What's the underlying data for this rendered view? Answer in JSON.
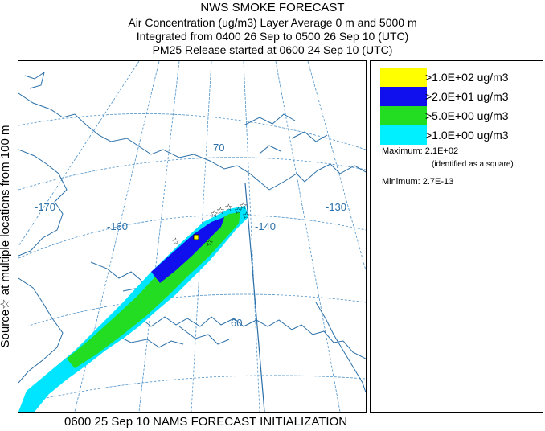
{
  "header": {
    "title": "NWS SMOKE FORECAST",
    "line2": "Air Concentration (ug/m3) Layer Average    0 m and  5000 m",
    "line3": "Integrated from 0400 26 Sep to 0500 26 Sep 10 (UTC)",
    "line4": "PM25 Release started at 0600 24 Sep 10 (UTC)"
  },
  "side_label": "Source☆    at multiple locations    from    100 m",
  "footer": "0600 25 Sep 10 NAMS FORECAST INITIALIZATION",
  "map": {
    "graticule_labels": {
      "lat70": "70",
      "lat60": "60",
      "lon170": "-170",
      "lon160": "-160",
      "lon140": "-140",
      "lon130": "-130"
    },
    "colors": {
      "land_outline": "#2a6fa8",
      "graticule": "#4a90c8",
      "cyan": "#00e5ff",
      "green": "#22dd22",
      "blue": "#1010ee",
      "yellow": "#ffff00",
      "source_marker": "#000000"
    },
    "maximum_marker": "square"
  },
  "legend": {
    "items": [
      {
        "label": ">1.0E+02 ug/m3",
        "color": "#ffff00"
      },
      {
        "label": ">2.0E+01 ug/m3",
        "color": "#1010ee"
      },
      {
        "label": ">5.0E+00 ug/m3",
        "color": "#22dd22"
      },
      {
        "label": ">1.0E+00 ug/m3",
        "color": "#00f0ff"
      }
    ],
    "maximum_label": "Maximum: 2.1E+02",
    "maximum_note": "(identified as a square)",
    "minimum_label": "Minimum: 2.7E-13"
  }
}
